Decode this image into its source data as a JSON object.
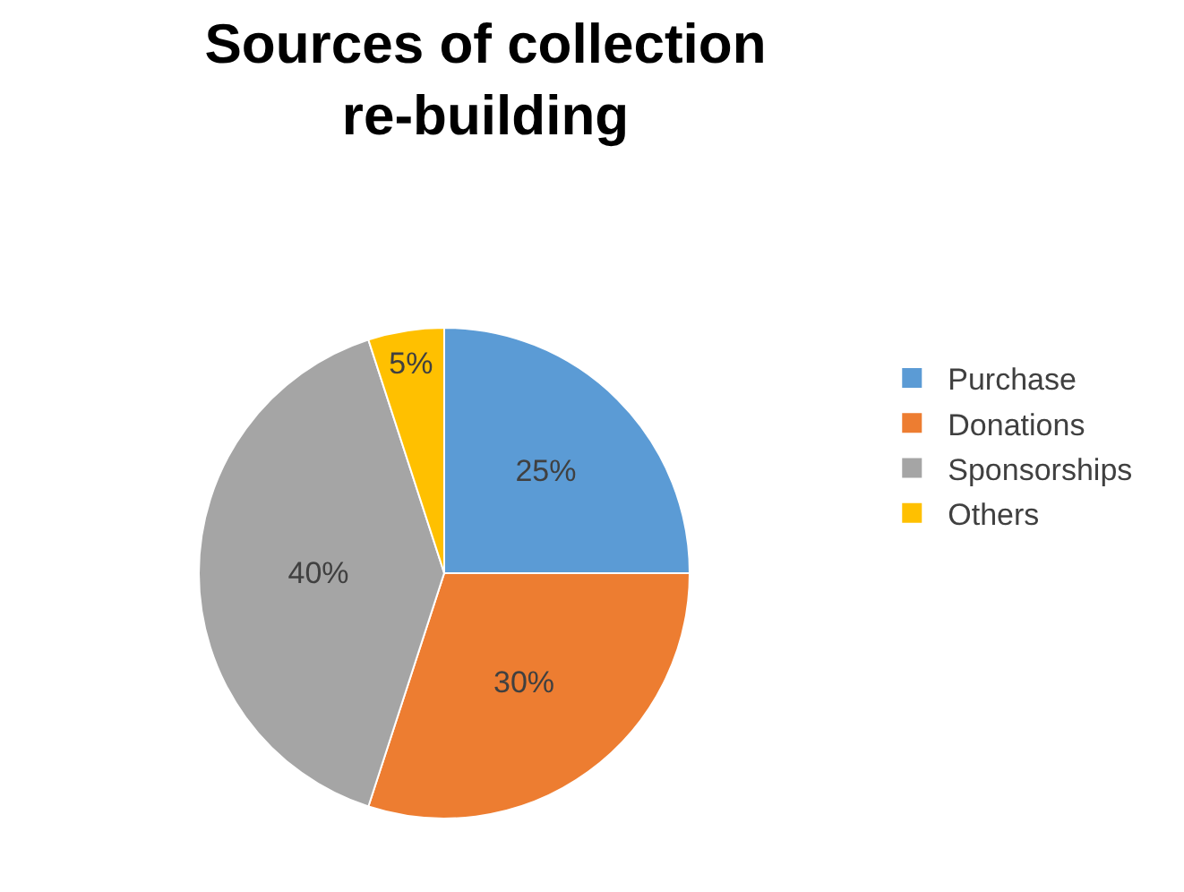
{
  "chart_data": {
    "type": "pie",
    "title": "Sources of collection re-building",
    "categories": [
      "Purchase",
      "Donations",
      "Sponsorships",
      "Others"
    ],
    "values": [
      25,
      30,
      40,
      5
    ],
    "colors": [
      "#5b9bd5",
      "#ed7d31",
      "#a5a5a5",
      "#ffc000"
    ],
    "value_labels": [
      "25%",
      "30%",
      "40%",
      "5%"
    ],
    "legend": "right"
  }
}
